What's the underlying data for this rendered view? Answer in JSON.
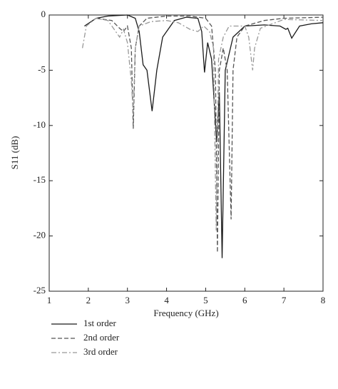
{
  "chart_data": {
    "type": "line",
    "x_label": "Frequency (GHz)",
    "y_label": "S11 (dB)",
    "xlim": [
      1,
      8
    ],
    "xticks": [
      1,
      2,
      3,
      4,
      5,
      6,
      7,
      8
    ],
    "ylim": [
      -25,
      0
    ],
    "yticks": [
      -25,
      -20,
      -15,
      -10,
      -5,
      0
    ],
    "series": [
      {
        "name": "1st order",
        "color": "#1a1a1a",
        "dash": "solid",
        "x": [
          1.9,
          2.2,
          2.5,
          3.0,
          3.2,
          3.3,
          3.4,
          3.5,
          3.63,
          3.75,
          3.9,
          4.2,
          4.5,
          4.8,
          4.9,
          4.97,
          5.05,
          5.15,
          5.28,
          5.35,
          5.42,
          5.5,
          5.7,
          6.0,
          6.5,
          6.9,
          7.05,
          7.1,
          7.2,
          7.4,
          7.7,
          8.0
        ],
        "values": [
          -1.0,
          -0.3,
          -0.1,
          0,
          -0.3,
          -1.5,
          -4.5,
          -5,
          -8.7,
          -5,
          -2,
          -0.5,
          -0.2,
          -0.3,
          -1.5,
          -5.2,
          -2.5,
          -4,
          -11.5,
          -7,
          -22,
          -5,
          -2,
          -1,
          -0.9,
          -1.0,
          -1.3,
          -1.2,
          -2.1,
          -1,
          -0.8,
          -0.7
        ]
      },
      {
        "name": "2nd order",
        "color": "#555555",
        "dash": "dashed",
        "x": [
          2.2,
          2.6,
          2.8,
          2.9,
          3.0,
          3.1,
          3.15,
          3.2,
          3.3,
          3.5,
          4.0,
          4.6,
          5.0,
          5.15,
          5.25,
          5.3,
          5.35,
          5.45,
          5.55,
          5.65,
          5.7,
          5.8,
          6.0,
          6.5,
          7.0,
          8.0
        ],
        "values": [
          -0.3,
          -0.5,
          -1.2,
          -1.5,
          -1,
          -3,
          -10.3,
          -3,
          -1,
          -0.3,
          -0.1,
          -0.1,
          -0.3,
          -1,
          -5,
          -21.5,
          -5,
          -3,
          -5,
          -18.5,
          -5,
          -2,
          -1,
          -0.5,
          -0.3,
          -0.2
        ]
      },
      {
        "name": "3rd order",
        "color": "#999999",
        "dash": "dashdot",
        "x": [
          1.85,
          1.95,
          2.2,
          2.5,
          2.7,
          2.8,
          2.9,
          3.0,
          3.1,
          3.15,
          3.2,
          3.3,
          3.6,
          4.0,
          4.3,
          4.6,
          4.8,
          4.95,
          5.1,
          5.2,
          5.27,
          5.33,
          5.45,
          5.6,
          6.0,
          6.1,
          6.2,
          6.25,
          6.4,
          6.7,
          7.0,
          8.0
        ],
        "values": [
          -3,
          -1,
          -0.3,
          -0.5,
          -1.5,
          -2,
          -1.3,
          -2.5,
          -6,
          -9,
          -3,
          -1,
          -0.6,
          -0.5,
          -0.7,
          -1.3,
          -1.5,
          -1,
          -1.5,
          -3,
          -19.5,
          -4,
          -2,
          -1,
          -1,
          -2,
          -5,
          -3,
          -1.2,
          -0.8,
          -0.4,
          -0.5
        ]
      }
    ]
  }
}
